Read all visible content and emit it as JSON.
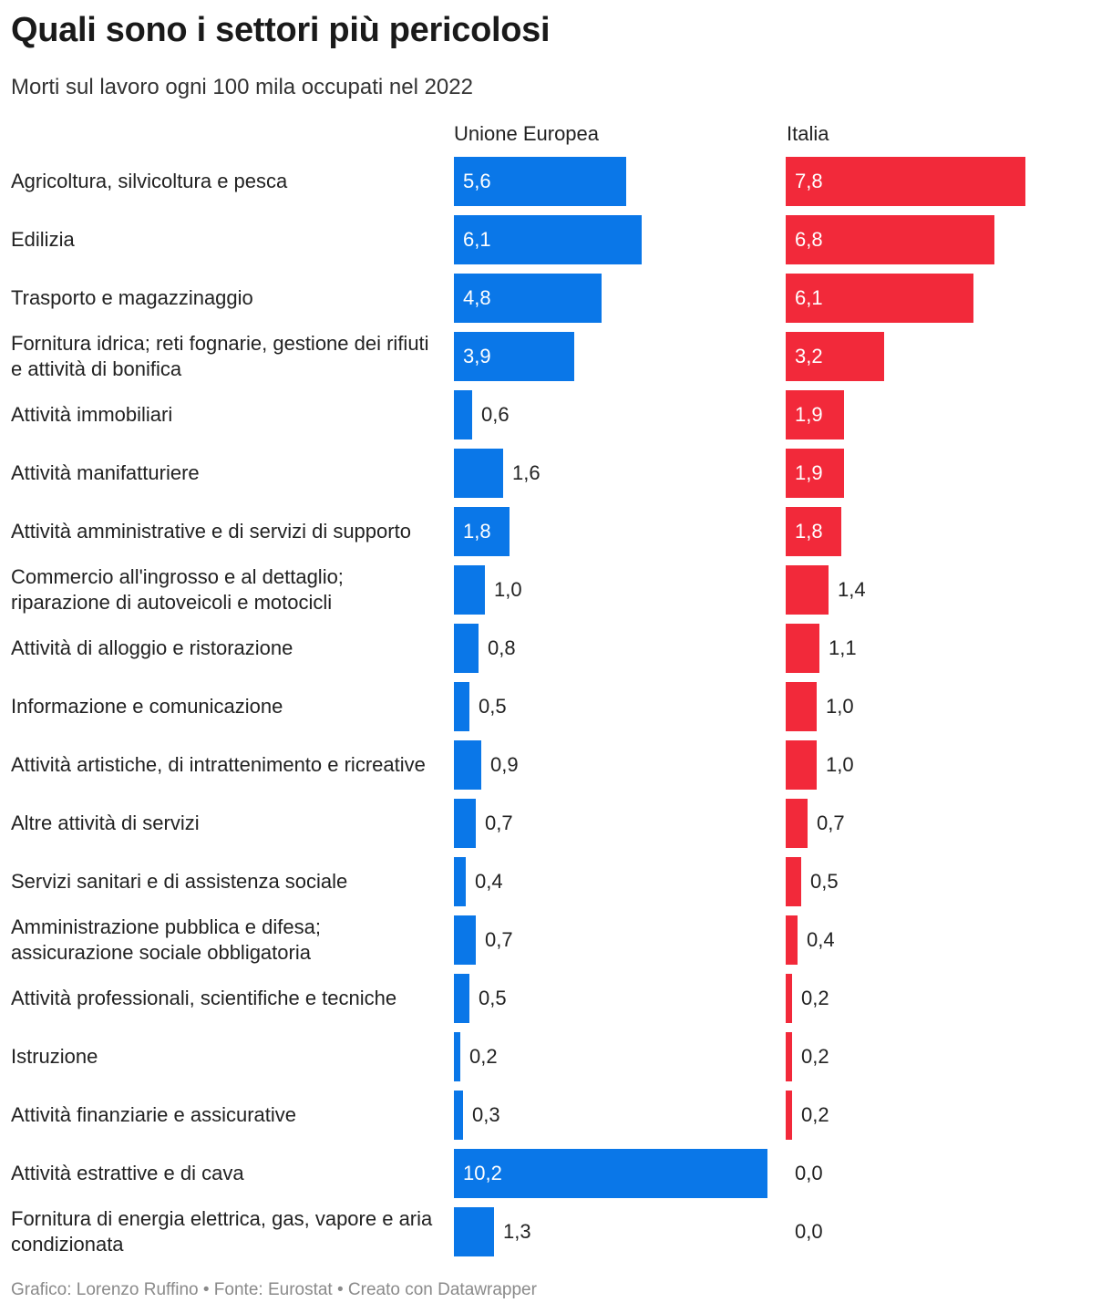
{
  "header": {
    "title": "Quali sono i settori più pericolosi",
    "subtitle": "Morti sul lavoro ogni 100 mila occupati nel 2022"
  },
  "footer": {
    "text": "Grafico: Lorenzo Ruffino • Fonte: Eurostat • Creato con Datawrapper"
  },
  "colors": {
    "eu": "#0a77e8",
    "italia": "#f2293a"
  },
  "chart_data": {
    "type": "bar",
    "orientation": "horizontal",
    "layout": "split-columns",
    "xlim": [
      0,
      10.2
    ],
    "grid": false,
    "legend": "column headers",
    "categories": [
      "Agricoltura, silvicoltura e pesca",
      "Edilizia",
      "Trasporto e magazzinaggio",
      "Fornitura idrica; reti fognarie, gestione dei rifiuti e attività di bonifica",
      "Attività immobiliari",
      "Attività manifatturiere",
      "Attività amministrative e di servizi di supporto",
      "Commercio all'ingrosso e al dettaglio; riparazione di autoveicoli e motocicli",
      "Attività di alloggio e ristorazione",
      "Informazione e comunicazione",
      "Attività artistiche, di intrattenimento e ricreative",
      "Altre attività di servizi",
      "Servizi sanitari e di assistenza sociale",
      "Amministrazione pubblica e difesa; assicurazione sociale obbligatoria",
      "Attività professionali, scientifiche e tecniche",
      "Istruzione",
      "Attività finanziarie e assicurative",
      "Attività estrattive e di cava",
      "Fornitura di energia elettrica, gas, vapore e aria condizionata"
    ],
    "series": [
      {
        "name": "Unione Europea",
        "values": [
          5.6,
          6.1,
          4.8,
          3.9,
          0.6,
          1.6,
          1.8,
          1.0,
          0.8,
          0.5,
          0.9,
          0.7,
          0.4,
          0.7,
          0.5,
          0.2,
          0.3,
          10.2,
          1.3
        ],
        "labels": [
          "5,6",
          "6,1",
          "4,8",
          "3,9",
          "0,6",
          "1,6",
          "1,8",
          "1,0",
          "0,8",
          "0,5",
          "0,9",
          "0,7",
          "0,4",
          "0,7",
          "0,5",
          "0,2",
          "0,3",
          "10,2",
          "1,3"
        ]
      },
      {
        "name": "Italia",
        "values": [
          7.8,
          6.8,
          6.1,
          3.2,
          1.9,
          1.9,
          1.8,
          1.4,
          1.1,
          1.0,
          1.0,
          0.7,
          0.5,
          0.4,
          0.2,
          0.2,
          0.2,
          0.0,
          0.0
        ],
        "labels": [
          "7,8",
          "6,8",
          "6,1",
          "3,2",
          "1,9",
          "1,9",
          "1,8",
          "1,4",
          "1,1",
          "1,0",
          "1,0",
          "0,7",
          "0,5",
          "0,4",
          "0,2",
          "0,2",
          "0,2",
          "0,0",
          "0,0"
        ]
      }
    ]
  }
}
